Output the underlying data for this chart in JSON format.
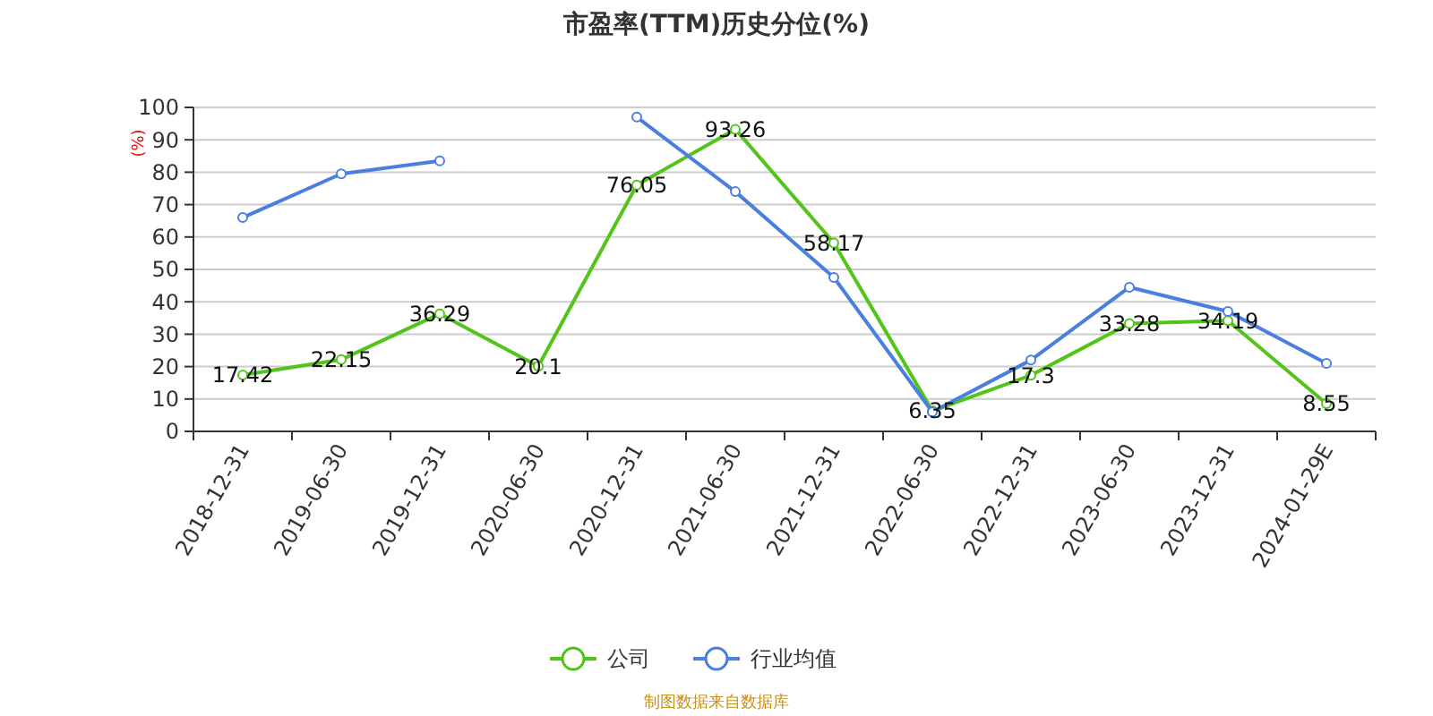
{
  "chart_data": {
    "type": "line",
    "title": "市盈率(TTM)历史分位(%)",
    "ylabel": "(%)",
    "categories": [
      "2018-12-31",
      "2019-06-30",
      "2019-12-31",
      "2020-06-30",
      "2020-12-31",
      "2021-06-30",
      "2021-12-31",
      "2022-06-30",
      "2022-12-31",
      "2023-06-30",
      "2023-12-31",
      "2024-01-29E"
    ],
    "series": [
      {
        "name": "公司",
        "color": "#52c41a",
        "values": [
          17.42,
          22.15,
          36.29,
          20.1,
          76.05,
          93.26,
          58.17,
          6.35,
          17.3,
          33.28,
          34.19,
          8.55
        ],
        "data_labels": true
      },
      {
        "name": "行业均值",
        "color": "#4a7fe0",
        "values": [
          66,
          79.5,
          83.5,
          null,
          97,
          74,
          47.5,
          6,
          22,
          44.5,
          37,
          21
        ]
      }
    ],
    "ylim": [
      0,
      100
    ],
    "yticks": [
      0,
      10,
      20,
      30,
      40,
      50,
      60,
      70,
      80,
      90,
      100
    ],
    "grid": "y",
    "marker": "circle",
    "legend": "bottom",
    "annotations": [
      "制图数据来自数据库"
    ]
  }
}
